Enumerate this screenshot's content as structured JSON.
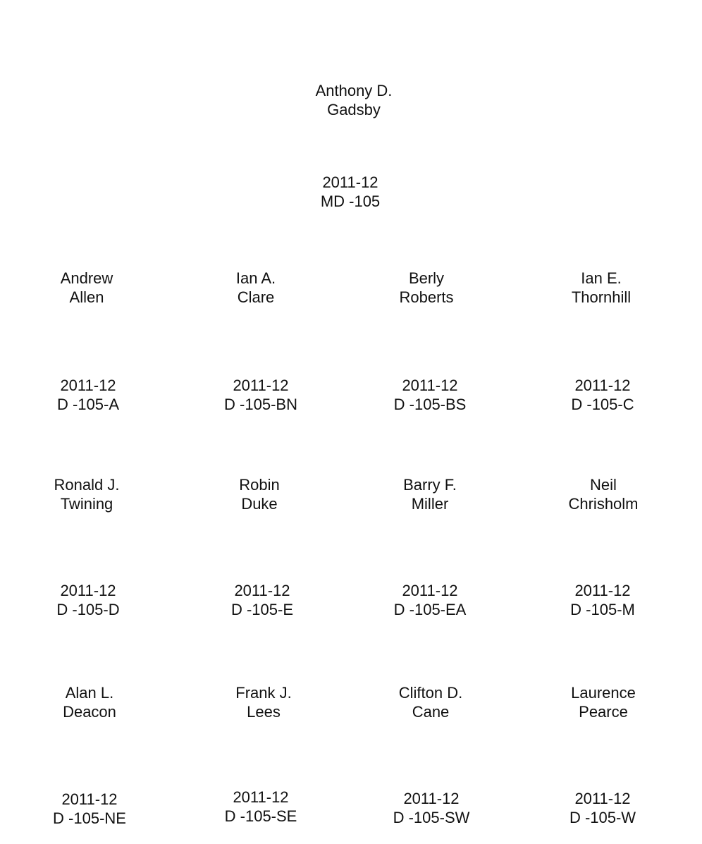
{
  "header": {
    "name": [
      "Anthony D.",
      "Gadsby"
    ],
    "code": [
      "2011-12",
      "MD -105"
    ]
  },
  "entries": [
    {
      "name": [
        "Andrew",
        "Allen"
      ],
      "code": [
        "2011-12",
        "D -105-A"
      ]
    },
    {
      "name": [
        "Ian A.",
        "Clare"
      ],
      "code": [
        "2011-12",
        "D -105-BN"
      ]
    },
    {
      "name": [
        "Berly",
        "Roberts"
      ],
      "code": [
        "2011-12",
        "D -105-BS"
      ]
    },
    {
      "name": [
        "Ian E.",
        "Thornhill"
      ],
      "code": [
        "2011-12",
        "D -105-C"
      ]
    },
    {
      "name": [
        "Ronald J.",
        "Twining"
      ],
      "code": [
        "2011-12",
        "D -105-D"
      ]
    },
    {
      "name": [
        "Robin",
        "Duke"
      ],
      "code": [
        "2011-12",
        "D -105-E"
      ]
    },
    {
      "name": [
        "Barry F.",
        "Miller"
      ],
      "code": [
        "2011-12",
        "D -105-EA"
      ]
    },
    {
      "name": [
        "Neil",
        "Chrisholm"
      ],
      "code": [
        "2011-12",
        "D -105-M"
      ]
    },
    {
      "name": [
        "Alan L.",
        "Deacon"
      ],
      "code": [
        "2011-12",
        "D -105-NE"
      ]
    },
    {
      "name": [
        "Frank J.",
        "Lees"
      ],
      "code": [
        "2011-12",
        "D -105-SE"
      ]
    },
    {
      "name": [
        "Clifton D.",
        "Cane"
      ],
      "code": [
        "2011-12",
        "D -105-SW"
      ]
    },
    {
      "name": [
        "Laurence",
        "Pearce"
      ],
      "code": [
        "2011-12",
        "D -105-W"
      ]
    }
  ]
}
